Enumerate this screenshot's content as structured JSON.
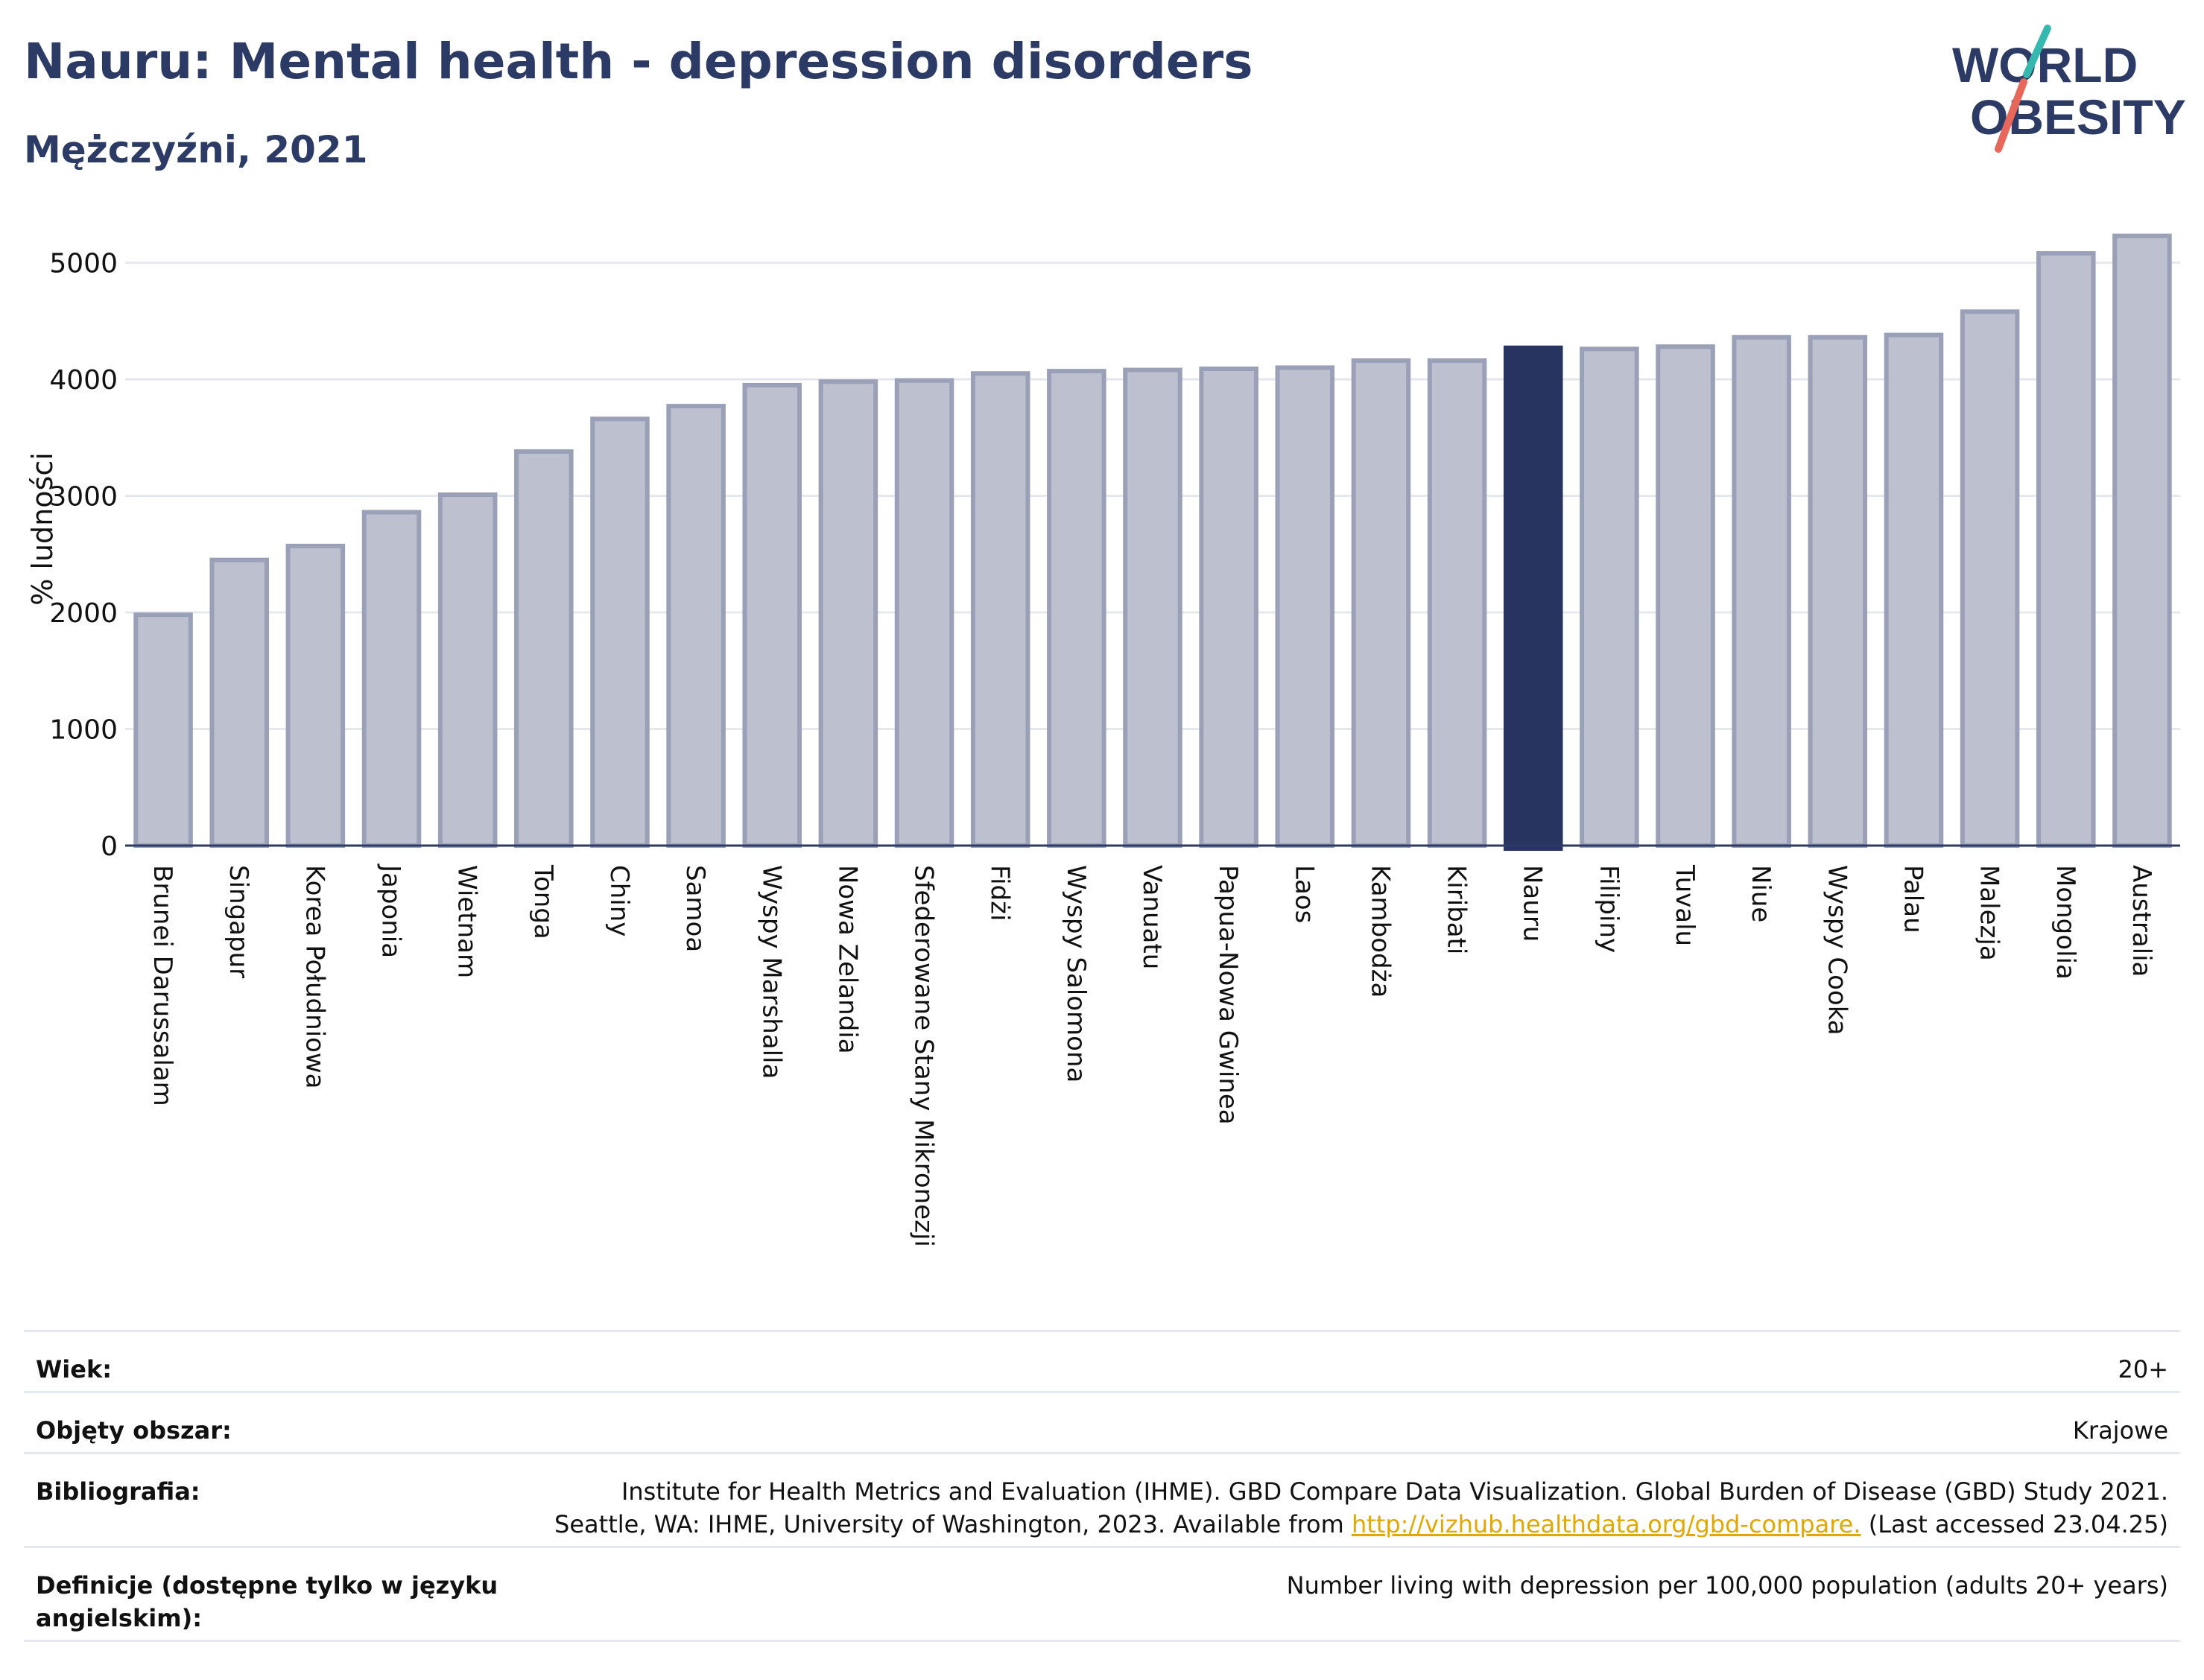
{
  "header": {
    "title": "Nauru: Mental health - depression disorders",
    "subtitle": "Mężczyźni, 2021",
    "logo_line1": "WORLD",
    "logo_line2": "OBESITY"
  },
  "chart_data": {
    "type": "bar",
    "title": "Nauru: Mental health - depression disorders",
    "subtitle": "Mężczyźni, 2021",
    "xlabel": "",
    "ylabel": "% ludności",
    "ylim": [
      0,
      5400
    ],
    "yticks": [
      0,
      1000,
      2000,
      3000,
      4000,
      5000
    ],
    "grid": true,
    "highlight": "Nauru",
    "colors": {
      "bar": "#bcc0cf",
      "bar_edge": "#9aa0b8",
      "highlight": "#283460"
    },
    "categories": [
      "Brunei Darussalam",
      "Singapur",
      "Korea Południowa",
      "Japonia",
      "Wietnam",
      "Tonga",
      "Chiny",
      "Samoa",
      "Wyspy Marshalla",
      "Nowa Zelandia",
      "Sfederowane Stany Mikronezji",
      "Fidżi",
      "Wyspy Salomona",
      "Vanuatu",
      "Papua-Nowa Gwinea",
      "Laos",
      "Kambodża",
      "Kiribati",
      "Nauru",
      "Filipiny",
      "Tuvalu",
      "Niue",
      "Wyspy Cooka",
      "Palau",
      "Malezja",
      "Mongolia",
      "Australia"
    ],
    "values": [
      1980,
      2450,
      2570,
      2860,
      3010,
      3380,
      3660,
      3770,
      3950,
      3980,
      3990,
      4050,
      4070,
      4080,
      4090,
      4100,
      4160,
      4160,
      4270,
      4260,
      4280,
      4360,
      4360,
      4380,
      4580,
      5080,
      5230
    ]
  },
  "meta": {
    "age_label": "Wiek:",
    "age_value": "20+",
    "area_label": "Objęty obszar:",
    "area_value": "Krajowe",
    "biblio_label": "Bibliografia:",
    "biblio_line1": "Institute for Health Metrics and Evaluation (IHME). GBD Compare Data Visualization. Global Burden of Disease (GBD) Study 2021.",
    "biblio_line2_pre": "Seattle, WA: IHME, University of Washington, 2023. Available from ",
    "biblio_link": "http://vizhub.healthdata.org/gbd-compare.",
    "biblio_line2_post": " (Last accessed 23.04.25)",
    "def_label": "Definicje (dostępne tylko w języku angielskim):",
    "def_value": "Number living with depression per 100,000 population (adults 20+ years)"
  }
}
